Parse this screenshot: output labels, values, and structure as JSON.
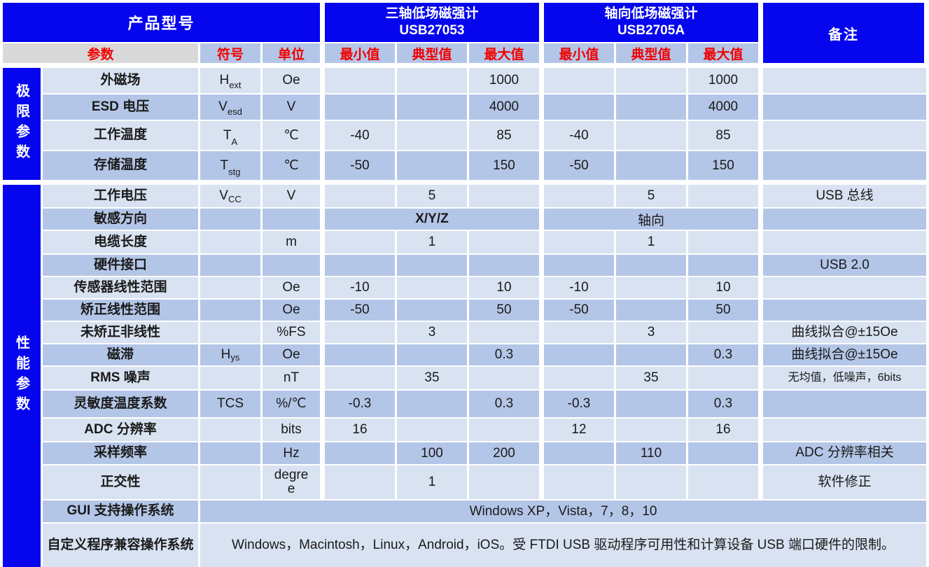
{
  "header": {
    "product_model": "产品型号",
    "param": "参数",
    "symbol": "符号",
    "unit": "单位",
    "min": "最小值",
    "typ": "典型值",
    "max": "最大值",
    "remark": "备注",
    "products": [
      {
        "name": "三轴低场磁强计",
        "model": "USB27053"
      },
      {
        "name": "轴向低场磁强计",
        "model": "USB2705A"
      }
    ]
  },
  "colors": {
    "header_blue": "#0606ee",
    "row_light": "#d8e2f1",
    "row_medium": "#b4c6e7",
    "param_header_gray": "#d9d9d9",
    "label_red": "#f00000"
  },
  "groups": [
    {
      "label": "极限参数",
      "rows": [
        {
          "t": "n",
          "param": "外磁场",
          "sym": "H",
          "sub": "ext",
          "unit": "Oe",
          "a": [
            "",
            "",
            "1000"
          ],
          "b": [
            "",
            "",
            "1000"
          ],
          "remark": ""
        },
        {
          "t": "n",
          "param": "ESD 电压",
          "sym": "V",
          "sub": "esd",
          "unit": "V",
          "a": [
            "",
            "",
            "4000"
          ],
          "b": [
            "",
            "",
            "4000"
          ],
          "remark": ""
        },
        {
          "t": "n",
          "param": "工作温度",
          "sym": "T",
          "sub": "A",
          "unit": "℃",
          "a": [
            "-40",
            "",
            "85"
          ],
          "b": [
            "-40",
            "",
            "85"
          ],
          "remark": ""
        },
        {
          "t": "n",
          "param": "存储温度",
          "sym": "T",
          "sub": "stg",
          "unit": "℃",
          "a": [
            "-50",
            "",
            "150"
          ],
          "b": [
            "-50",
            "",
            "150"
          ],
          "remark": ""
        }
      ]
    },
    {
      "label": "性能参数",
      "rows": [
        {
          "t": "n",
          "param": "工作电压",
          "sym": "V",
          "sub": "CC",
          "unit": "V",
          "a": [
            "",
            "5",
            ""
          ],
          "b": [
            "",
            "5",
            ""
          ],
          "remark": "USB 总线"
        },
        {
          "t": "m",
          "param": "敏感方向",
          "sym": "",
          "sub": "",
          "unit": "",
          "am": "X/Y/Z",
          "bm": "轴向",
          "remark": ""
        },
        {
          "t": "n",
          "param": "电缆长度",
          "sym": "",
          "sub": "",
          "unit": "m",
          "a": [
            "",
            "1",
            ""
          ],
          "b": [
            "",
            "1",
            ""
          ],
          "remark": ""
        },
        {
          "t": "n",
          "param": "硬件接口",
          "sym": "",
          "sub": "",
          "unit": "",
          "a": [
            "",
            "",
            ""
          ],
          "b": [
            "",
            "",
            ""
          ],
          "remark": "USB 2.0"
        },
        {
          "t": "n",
          "param": "传感器线性范围",
          "sym": "",
          "sub": "",
          "unit": "Oe",
          "a": [
            "-10",
            "",
            "10"
          ],
          "b": [
            "-10",
            "",
            "10"
          ],
          "remark": ""
        },
        {
          "t": "n",
          "param": "矫正线性范围",
          "sym": "",
          "sub": "",
          "unit": "Oe",
          "a": [
            "-50",
            "",
            "50"
          ],
          "b": [
            "-50",
            "",
            "50"
          ],
          "remark": ""
        },
        {
          "t": "n",
          "param": "未矫正非线性",
          "sym": "",
          "sub": "",
          "unit": "%FS",
          "a": [
            "",
            "3",
            ""
          ],
          "b": [
            "",
            "3",
            ""
          ],
          "remark": "曲线拟合@±15Oe"
        },
        {
          "t": "n",
          "param": "磁滞",
          "sym": "H",
          "sub": "ys",
          "unit": "Oe",
          "a": [
            "",
            "",
            "0.3"
          ],
          "b": [
            "",
            "",
            "0.3"
          ],
          "remark": "曲线拟合@±15Oe"
        },
        {
          "t": "n",
          "param": "RMS 噪声",
          "sym": "",
          "sub": "",
          "unit": "nT",
          "a": [
            "",
            "35",
            ""
          ],
          "b": [
            "",
            "35",
            ""
          ],
          "remark": "无均值，低噪声，6bits"
        },
        {
          "t": "n",
          "param": "灵敏度温度系数",
          "sym": "TCS",
          "sub": "",
          "unit": "%/℃",
          "a": [
            "-0.3",
            "",
            "0.3"
          ],
          "b": [
            "-0.3",
            "",
            "0.3"
          ],
          "remark": ""
        },
        {
          "t": "n",
          "param": "ADC 分辨率",
          "sym": "",
          "sub": "",
          "unit": "bits",
          "a": [
            "16",
            "",
            ""
          ],
          "b": [
            "12",
            "",
            "16"
          ],
          "remark": ""
        },
        {
          "t": "n",
          "param": "采样频率",
          "sym": "",
          "sub": "",
          "unit": "Hz",
          "a": [
            "",
            "100",
            "200"
          ],
          "b": [
            "",
            "110",
            ""
          ],
          "remark": "ADC 分辨率相关"
        },
        {
          "t": "n",
          "param": "正交性",
          "sym": "",
          "sub": "",
          "unit": "degree",
          "a": [
            "",
            "1",
            ""
          ],
          "b": [
            "",
            "",
            ""
          ],
          "remark": "软件修正"
        },
        {
          "t": "f",
          "param": "GUI 支持操作系统",
          "text": "Windows XP，Vista，7，8，10"
        },
        {
          "t": "f",
          "param": "自定义程序兼容操作系统",
          "text": "Windows，Macintosh，Linux，Android，iOS。受 FTDI USB 驱动程序可用性和计算设备 USB 端口硬件的限制。"
        }
      ]
    }
  ]
}
